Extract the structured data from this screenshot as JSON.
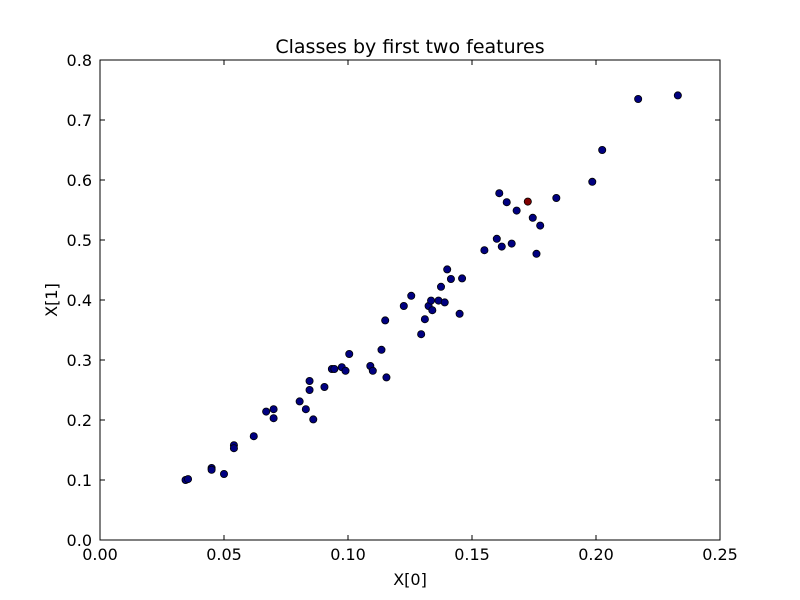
{
  "chart_data": {
    "type": "scatter",
    "title": "Classes by first two features",
    "xlabel": "X[0]",
    "ylabel": "X[1]",
    "xlim": [
      0.0,
      0.25
    ],
    "ylim": [
      0.0,
      0.8
    ],
    "xticks": [
      0.0,
      0.05,
      0.1,
      0.15,
      0.2,
      0.25
    ],
    "yticks": [
      0.0,
      0.1,
      0.2,
      0.3,
      0.4,
      0.5,
      0.6,
      0.7,
      0.8
    ],
    "xtick_labels": [
      "0.00",
      "0.05",
      "0.10",
      "0.15",
      "0.20",
      "0.25"
    ],
    "ytick_labels": [
      "0.0",
      "0.1",
      "0.2",
      "0.3",
      "0.4",
      "0.5",
      "0.6",
      "0.7",
      "0.8"
    ],
    "grid": false,
    "series": [
      {
        "color": "#000080",
        "points": [
          [
            0.0345,
            0.1
          ],
          [
            0.0355,
            0.1015
          ],
          [
            0.045,
            0.12
          ],
          [
            0.045,
            0.117
          ],
          [
            0.05,
            0.11
          ],
          [
            0.054,
            0.158
          ],
          [
            0.054,
            0.153
          ],
          [
            0.062,
            0.173
          ],
          [
            0.067,
            0.214
          ],
          [
            0.07,
            0.218
          ],
          [
            0.07,
            0.203
          ],
          [
            0.0805,
            0.231
          ],
          [
            0.083,
            0.218
          ],
          [
            0.0845,
            0.265
          ],
          [
            0.0845,
            0.25
          ],
          [
            0.086,
            0.201
          ],
          [
            0.0905,
            0.255
          ],
          [
            0.0935,
            0.285
          ],
          [
            0.0945,
            0.285
          ],
          [
            0.0975,
            0.288
          ],
          [
            0.099,
            0.282
          ],
          [
            0.1005,
            0.31
          ],
          [
            0.109,
            0.29
          ],
          [
            0.11,
            0.282
          ],
          [
            0.1135,
            0.317
          ],
          [
            0.115,
            0.366
          ],
          [
            0.1155,
            0.271
          ],
          [
            0.1225,
            0.39
          ],
          [
            0.1255,
            0.407
          ],
          [
            0.1295,
            0.343
          ],
          [
            0.131,
            0.368
          ],
          [
            0.1325,
            0.39
          ],
          [
            0.1335,
            0.399
          ],
          [
            0.134,
            0.383
          ],
          [
            0.1365,
            0.399
          ],
          [
            0.1375,
            0.422
          ],
          [
            0.139,
            0.396
          ],
          [
            0.14,
            0.451
          ],
          [
            0.1415,
            0.435
          ],
          [
            0.145,
            0.377
          ],
          [
            0.146,
            0.436
          ],
          [
            0.155,
            0.483
          ],
          [
            0.16,
            0.502
          ],
          [
            0.161,
            0.578
          ],
          [
            0.162,
            0.489
          ],
          [
            0.164,
            0.563
          ],
          [
            0.166,
            0.494
          ],
          [
            0.168,
            0.549
          ],
          [
            0.1745,
            0.537
          ],
          [
            0.176,
            0.477
          ],
          [
            0.1775,
            0.524
          ],
          [
            0.184,
            0.57
          ],
          [
            0.1985,
            0.597
          ],
          [
            0.2025,
            0.65
          ],
          [
            0.217,
            0.735
          ],
          [
            0.233,
            0.741
          ]
        ]
      },
      {
        "color": "#800000",
        "points": [
          [
            0.1725,
            0.564
          ]
        ]
      }
    ]
  }
}
